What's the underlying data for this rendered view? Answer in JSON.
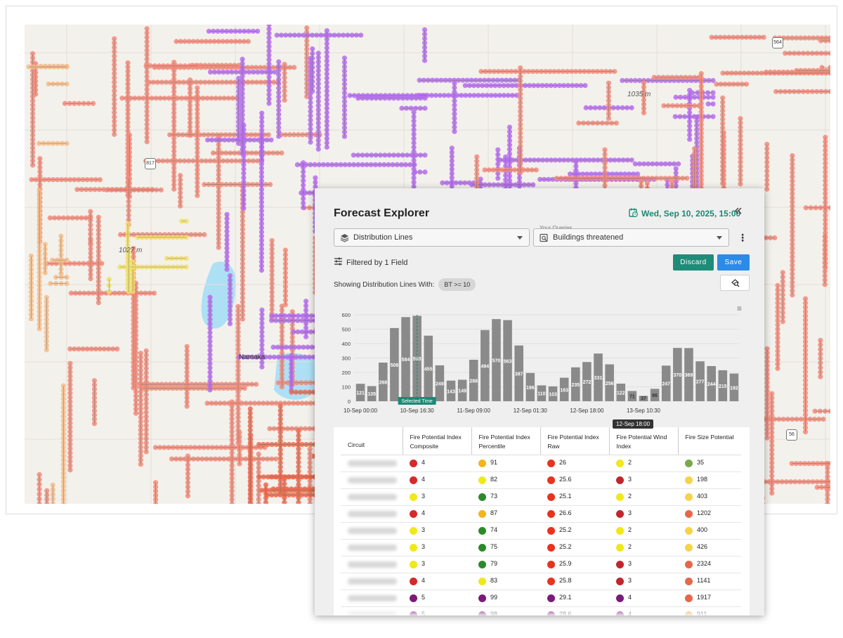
{
  "map": {
    "labels": [
      {
        "text": "1035 m",
        "kind": "elev"
      },
      {
        "text": "1027 m",
        "kind": "elev"
      },
      {
        "text": "Namaka",
        "kind": "town"
      }
    ],
    "shields": [
      "564",
      "56",
      "817"
    ]
  },
  "panel": {
    "title": "Forecast Explorer",
    "date": "Wed, Sep 10, 2025, 15:00",
    "layer_select": {
      "value": "Distribution Lines"
    },
    "query_select": {
      "label": "Your Queries",
      "value": "Buildings threatened"
    },
    "filter_text": "Filtered by 1 Field",
    "discard_label": "Discard",
    "save_label": "Save",
    "showing_text": "Showing Distribution Lines With:",
    "chip": "BT >= 10"
  },
  "chart_data": {
    "type": "bar",
    "yticks": [
      0,
      100,
      200,
      300,
      400,
      500,
      600
    ],
    "ylim": [
      0,
      600
    ],
    "values": [
      121,
      105,
      268,
      508,
      584,
      593,
      455,
      249,
      143,
      149,
      288,
      494,
      570,
      563,
      387,
      196,
      110,
      103,
      163,
      235,
      272,
      331,
      256,
      122,
      71,
      37,
      86,
      247,
      370,
      369,
      277,
      244,
      215,
      192
    ],
    "xtick_labels": [
      "10-Sep 00:00",
      "10-Sep 16:30",
      "11-Sep 09:00",
      "12-Sep 01:30",
      "12-Sep 18:00",
      "13-Sep 10:30"
    ],
    "selected_index": 5,
    "selected_label": "Selected Time",
    "tooltip": "12-Sep 18:00",
    "colors": {
      "bar": "#8a8a8a",
      "selected": "#1a8a73"
    }
  },
  "table": {
    "headers": [
      "Circuit",
      "Fire Potential Index Composite",
      "Fire Potential Index Percentile",
      "Fire Potential Index Raw",
      "Fire Potential Wind Index",
      "Fire Size Potential"
    ],
    "rows": [
      {
        "c1": {
          "color": "#d42a2a",
          "v": "4"
        },
        "c2": {
          "color": "#f2b61a",
          "v": "91"
        },
        "c3": {
          "color": "#e8331f",
          "v": "26"
        },
        "c4": {
          "color": "#f0e81a",
          "v": "2"
        },
        "c5": {
          "color": "#7aa84a",
          "v": "35"
        }
      },
      {
        "c1": {
          "color": "#d42a2a",
          "v": "4"
        },
        "c2": {
          "color": "#f0e81a",
          "v": "82"
        },
        "c3": {
          "color": "#e8331f",
          "v": "25.6"
        },
        "c4": {
          "color": "#c0262c",
          "v": "3"
        },
        "c5": {
          "color": "#f5d34a",
          "v": "198"
        }
      },
      {
        "c1": {
          "color": "#f0e81a",
          "v": "3"
        },
        "c2": {
          "color": "#2a8a2a",
          "v": "73"
        },
        "c3": {
          "color": "#e8331f",
          "v": "25.1"
        },
        "c4": {
          "color": "#f0e81a",
          "v": "2"
        },
        "c5": {
          "color": "#f5d34a",
          "v": "403"
        }
      },
      {
        "c1": {
          "color": "#d42a2a",
          "v": "4"
        },
        "c2": {
          "color": "#f2b61a",
          "v": "87"
        },
        "c3": {
          "color": "#e8331f",
          "v": "26.6"
        },
        "c4": {
          "color": "#c0262c",
          "v": "3"
        },
        "c5": {
          "color": "#e8664a",
          "v": "1202"
        }
      },
      {
        "c1": {
          "color": "#f0e81a",
          "v": "3"
        },
        "c2": {
          "color": "#2a8a2a",
          "v": "74"
        },
        "c3": {
          "color": "#e8331f",
          "v": "25.2"
        },
        "c4": {
          "color": "#f0e81a",
          "v": "2"
        },
        "c5": {
          "color": "#f5d34a",
          "v": "400"
        }
      },
      {
        "c1": {
          "color": "#f0e81a",
          "v": "3"
        },
        "c2": {
          "color": "#2a8a2a",
          "v": "75"
        },
        "c3": {
          "color": "#e8331f",
          "v": "25.2"
        },
        "c4": {
          "color": "#f0e81a",
          "v": "2"
        },
        "c5": {
          "color": "#f5d34a",
          "v": "426"
        }
      },
      {
        "c1": {
          "color": "#f0e81a",
          "v": "3"
        },
        "c2": {
          "color": "#2a8a2a",
          "v": "79"
        },
        "c3": {
          "color": "#e8331f",
          "v": "25.9"
        },
        "c4": {
          "color": "#c0262c",
          "v": "3"
        },
        "c5": {
          "color": "#e8664a",
          "v": "2324"
        }
      },
      {
        "c1": {
          "color": "#d42a2a",
          "v": "4"
        },
        "c2": {
          "color": "#f0e81a",
          "v": "83"
        },
        "c3": {
          "color": "#e8331f",
          "v": "25.8"
        },
        "c4": {
          "color": "#c0262c",
          "v": "3"
        },
        "c5": {
          "color": "#e8664a",
          "v": "1141"
        }
      },
      {
        "c1": {
          "color": "#7a1a7a",
          "v": "5"
        },
        "c2": {
          "color": "#7a1a7a",
          "v": "99"
        },
        "c3": {
          "color": "#7a1a7a",
          "v": "29.1"
        },
        "c4": {
          "color": "#7a1a7a",
          "v": "4"
        },
        "c5": {
          "color": "#e8664a",
          "v": "1917"
        }
      },
      {
        "c1": {
          "color": "#7a1a7a",
          "v": "5"
        },
        "c2": {
          "color": "#7a1a7a",
          "v": "98"
        },
        "c3": {
          "color": "#7a1a7a",
          "v": "28.6"
        },
        "c4": {
          "color": "#7a1a7a",
          "v": "4"
        },
        "c5": {
          "color": "#f2a43a",
          "v": "911"
        }
      }
    ]
  }
}
